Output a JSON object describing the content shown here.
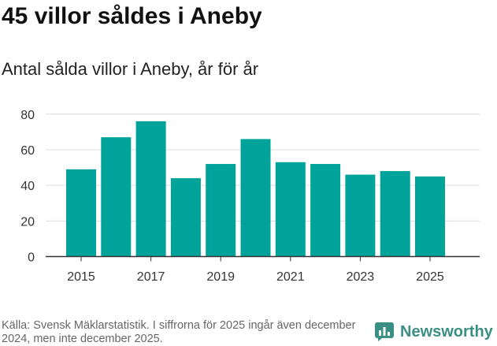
{
  "header": {
    "title": "45 villor såldes i Aneby",
    "subtitle": "Antal sålda villor i Aneby, år för år"
  },
  "footer": {
    "source": "Källa: Svensk Mäklarstatistik. I siffrorna för 2025 ingår även december 2024, men inte december 2025.",
    "logo_text": "Newsworthy"
  },
  "colors": {
    "bar": "#00a39a",
    "grid": "#dcdcdc",
    "axis": "#333333",
    "logo": "#3a8f84"
  },
  "chart_data": {
    "type": "bar",
    "title": "45 villor såldes i Aneby",
    "subtitle": "Antal sålda villor i Aneby, år för år",
    "xlabel": "",
    "ylabel": "",
    "categories": [
      "2015",
      "2016",
      "2017",
      "2018",
      "2019",
      "2020",
      "2021",
      "2022",
      "2023",
      "2024",
      "2025"
    ],
    "values": [
      49,
      67,
      76,
      44,
      52,
      66,
      53,
      52,
      46,
      48,
      45
    ],
    "x_tick_labels": [
      "2015",
      "2017",
      "2019",
      "2021",
      "2023",
      "2025"
    ],
    "y_ticks": [
      0,
      20,
      40,
      60,
      80
    ],
    "ylim": [
      0,
      85
    ],
    "grid": true
  }
}
